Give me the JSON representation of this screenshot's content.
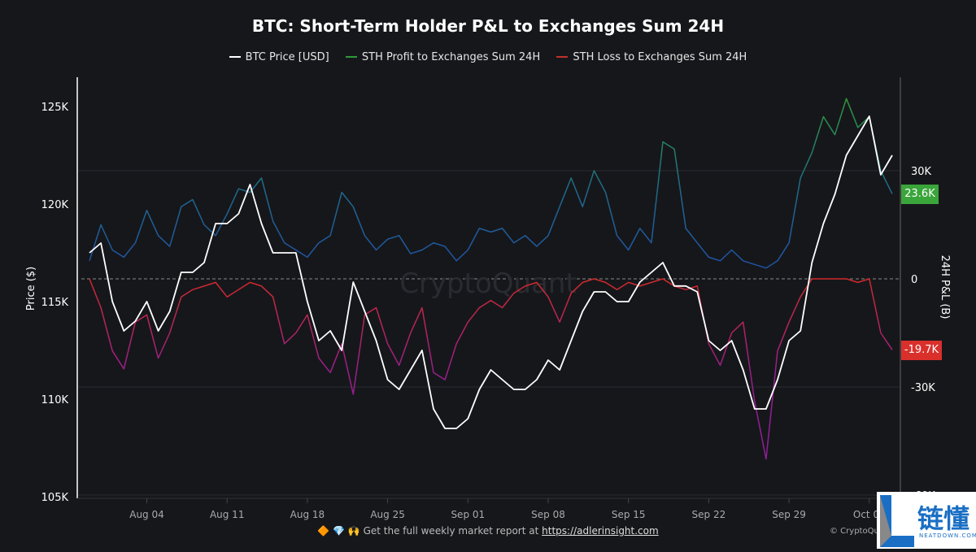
{
  "chart_data": {
    "type": "line",
    "title": "BTC: Short-Term Holder P&L to Exchanges Sum 24H",
    "ylabel_left": "Price ($)",
    "ylabel_right": "24H P&L (B)",
    "ylim_left": [
      105000,
      127000
    ],
    "ylim_right": [
      -60000,
      50000
    ],
    "yticks_left": [
      "105K",
      "110K",
      "115K",
      "120K",
      "125K"
    ],
    "yticks_left_values": [
      105000,
      110000,
      115000,
      120000,
      125000
    ],
    "yticks_right": [
      "30K",
      "0",
      "-30K",
      "-60K"
    ],
    "yticks_right_values": [
      30000,
      0,
      -30000,
      -60000
    ],
    "xticks": [
      "Aug 04",
      "Aug 11",
      "Aug 18",
      "Aug 25",
      "Sep 01",
      "Sep 08",
      "Sep 15",
      "Sep 22",
      "Sep 29",
      "Oct 06"
    ],
    "xtick_dates": [
      "2025-08-04",
      "2025-08-11",
      "2025-08-18",
      "2025-08-25",
      "2025-09-01",
      "2025-09-08",
      "2025-09-15",
      "2025-09-22",
      "2025-09-29",
      "2025-10-06"
    ],
    "x_start": "2025-07-30",
    "grid": true,
    "legend_position": "top",
    "last_values": {
      "profit": "23.6K",
      "loss": "-19.7K"
    },
    "colors": {
      "price": "#ffffff",
      "profit_low": "#1f4fa8",
      "profit_high": "#2e9a3a",
      "loss_low": "#d02a2a",
      "loss_high": "#9a1f8a",
      "profit_tag": "#3aa53a",
      "loss_tag": "#d9302c"
    },
    "series": [
      {
        "name": "BTC Price [USD]",
        "axis": "left",
        "values": [
          117500,
          118000,
          115000,
          113500,
          114000,
          115000,
          113500,
          114500,
          116500,
          116500,
          117000,
          119000,
          119000,
          119500,
          121000,
          119000,
          117500,
          117500,
          117500,
          115000,
          113000,
          113500,
          112500,
          116000,
          114500,
          113000,
          111000,
          110500,
          111500,
          112500,
          109500,
          108500,
          108500,
          109000,
          110500,
          111500,
          111000,
          110500,
          110500,
          111000,
          112000,
          111500,
          113000,
          114500,
          115500,
          115500,
          115000,
          115000,
          116000,
          116500,
          117000,
          115800,
          115800,
          115500,
          113000,
          112500,
          113000,
          111500,
          109500,
          109500,
          111000,
          113000,
          113500,
          117000,
          119000,
          120500,
          122500,
          123500,
          124500,
          121500,
          122500
        ]
      },
      {
        "name": "STH Profit to Exchanges Sum 24H",
        "axis": "right",
        "values": [
          5000,
          15000,
          8000,
          6000,
          10000,
          19000,
          12000,
          9000,
          20000,
          22000,
          15000,
          12000,
          18000,
          25000,
          24000,
          28000,
          16000,
          10000,
          8000,
          6000,
          10000,
          12000,
          24000,
          20000,
          12000,
          8000,
          11000,
          12000,
          7000,
          8000,
          10000,
          9000,
          5000,
          8000,
          14000,
          13000,
          14000,
          10000,
          12000,
          9000,
          12000,
          20000,
          28000,
          20000,
          30000,
          24000,
          12000,
          8000,
          14000,
          10000,
          38000,
          36000,
          14000,
          10000,
          6000,
          5000,
          8000,
          5000,
          4000,
          3000,
          5000,
          10000,
          28000,
          35000,
          45000,
          40000,
          50000,
          42000,
          45000,
          30000,
          23600
        ]
      },
      {
        "name": "STH Loss to Exchanges Sum 24H",
        "axis": "right",
        "values": [
          0,
          -8000,
          -20000,
          -25000,
          -12000,
          -10000,
          -22000,
          -15000,
          -5000,
          -3000,
          -2000,
          -1000,
          -5000,
          -3000,
          -1000,
          -2000,
          -5000,
          -18000,
          -15000,
          -10000,
          -22000,
          -26000,
          -18000,
          -32000,
          -10000,
          -8000,
          -18000,
          -24000,
          -15000,
          -8000,
          -26000,
          -28000,
          -18000,
          -12000,
          -8000,
          -6000,
          -8000,
          -4000,
          -2000,
          -1000,
          -5000,
          -12000,
          -4000,
          -1000,
          0,
          -1000,
          -3000,
          -1000,
          -2000,
          -1000,
          0,
          -2000,
          -3000,
          -2000,
          -18000,
          -24000,
          -15000,
          -12000,
          -34000,
          -50000,
          -20000,
          -12000,
          -5000,
          0,
          0,
          0,
          0,
          -1000,
          0,
          -15000,
          -19700
        ]
      }
    ]
  },
  "footer": {
    "text": "Get the full weekly market report at",
    "link": "https://adlerinsight.com",
    "emoji": "🔶 💎 🙌"
  },
  "copyright": "© CryptoQuant",
  "watermark": "CryptoQuant",
  "logo": {
    "cn": "链懂",
    "en": "NEATDOWN.COM"
  }
}
